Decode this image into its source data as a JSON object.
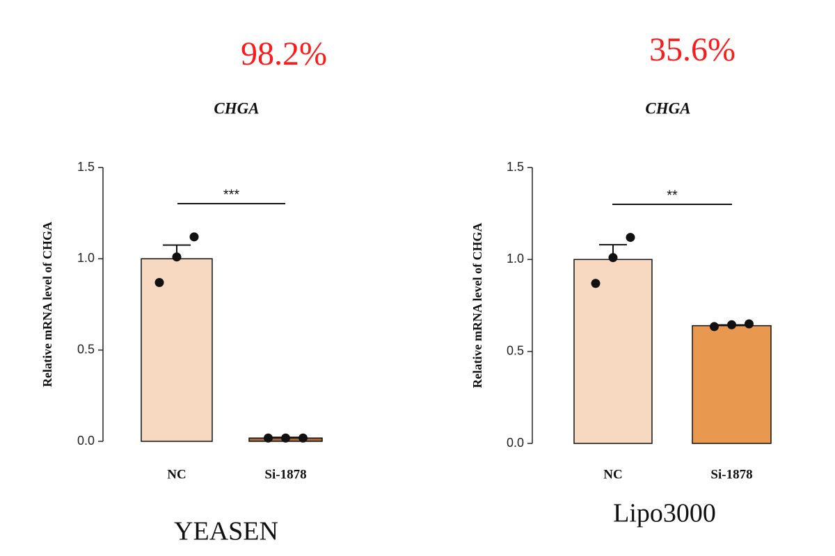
{
  "chart_data": [
    {
      "type": "bar",
      "annotation": "98.2%",
      "annotation_color": "#ff1a1a",
      "title": "CHGA",
      "ylabel": "Relative mRNA level of CHGA",
      "footer": "YEASEN",
      "significance": "***",
      "categories": [
        "NC",
        "Si-1878"
      ],
      "values": [
        1.0,
        0.018
      ],
      "errors": [
        0.075,
        0.004
      ],
      "points": [
        [
          0.87,
          1.01,
          1.12
        ],
        [
          0.018,
          0.018,
          0.018
        ]
      ],
      "colors": [
        "#f7d9c1",
        "#a8693a"
      ],
      "ylim": [
        0,
        1.5
      ],
      "yticks": [
        {
          "value": 0,
          "label": "0.0"
        },
        0.5,
        {
          "value": 1,
          "label": "1.0"
        },
        1.5
      ]
    },
    {
      "type": "bar",
      "annotation": "35.6%",
      "annotation_color": "#ff1a1a",
      "title": "CHGA",
      "ylabel": "Relative mRNA level of CHGA",
      "footer": "Lipo3000",
      "significance": "**",
      "categories": [
        "NC",
        "Si-1878"
      ],
      "values": [
        1.0,
        0.64
      ],
      "errors": [
        0.08,
        0.004
      ],
      "points": [
        [
          0.87,
          1.01,
          1.12
        ],
        [
          0.635,
          0.645,
          0.65
        ]
      ],
      "colors": [
        "#f7d9c1",
        "#e8984f"
      ],
      "ylim": [
        0,
        1.5
      ],
      "yticks": [
        {
          "value": 0,
          "label": "0.0"
        },
        0.5,
        {
          "value": 1,
          "label": "1.0"
        },
        1.5
      ]
    }
  ]
}
